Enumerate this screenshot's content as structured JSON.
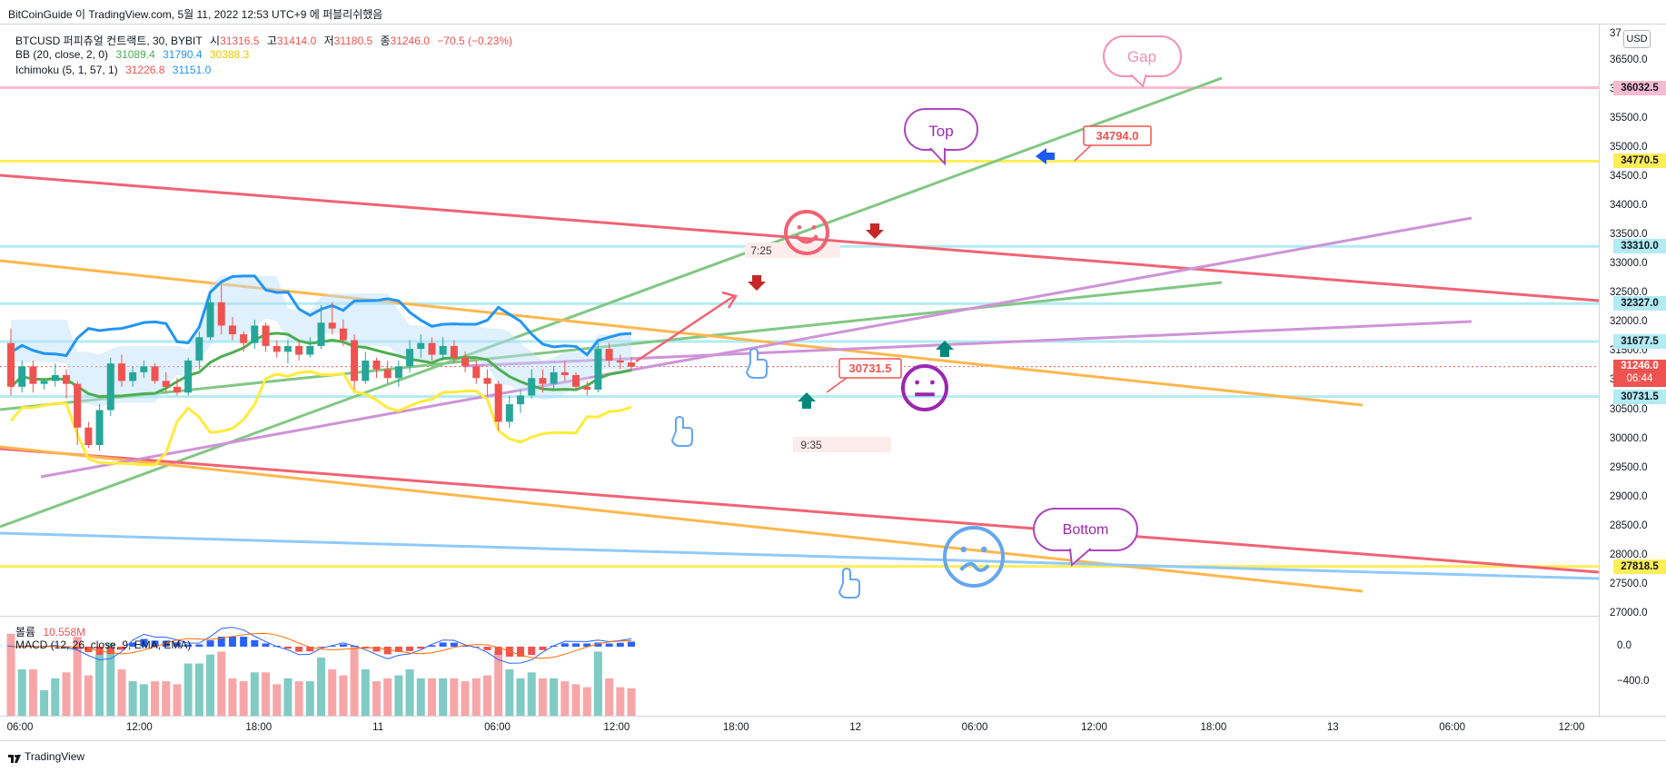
{
  "header": {
    "attribution": "BitCoinGuide 이 TradingView.com, 5월 11, 2022 12:53 UTC+9 에 퍼블리쉬했음"
  },
  "legend": {
    "symbol": "BTCUSD 퍼피츄얼 컨트랙트, 30, BYBIT",
    "open_label": "시",
    "open": "31316.5",
    "high_label": "고",
    "high": "31414.0",
    "low_label": "저",
    "low": "31180.5",
    "close_label": "종",
    "close": "31246.0",
    "change": "−70.5 (−0.23%)",
    "bb_label": "BB (20, close, 2, 0)",
    "bb_basis": "31089.4",
    "bb_upper": "31790.4",
    "bb_lower": "30388.3",
    "ichimoku_label": "Ichimoku (5, 1, 57, 1)",
    "ichi_a": "31226.8",
    "ichi_b": "31151.0",
    "volume_label": "볼륨",
    "volume_value": "10.558M",
    "macd_label": "MACD (12, 26, close, 9, EMA, EMA)"
  },
  "colors": {
    "up": "#26a69a",
    "down": "#ef5350",
    "bb_basis": "#4caf50",
    "bb_upper": "#2196f3",
    "bb_lower": "#ffeb3b",
    "green_line": "#81c784",
    "red_line": "#f06373",
    "orange_line": "#ffb74d",
    "violet_line": "#ce93d8",
    "cyan_line": "#b2ebf2",
    "yellow_line": "#ffee58",
    "pink_line": "#f8bbd0",
    "blue_line": "#90caf9"
  },
  "price_axis": {
    "currency": "USD",
    "ticks": [
      "36500.0",
      "36000.0",
      "35500.0",
      "35000.0",
      "34500.0",
      "34000.0",
      "33500.0",
      "33000.0",
      "32500.0",
      "32000.0",
      "31500.0",
      "31000.0",
      "30500.0",
      "30000.0",
      "29500.0",
      "29000.0",
      "28500.0",
      "28000.0",
      "27500.0",
      "27000.0"
    ],
    "top_partial": "37",
    "tags": [
      {
        "value": "36032.5",
        "bg": "#f8bbd0"
      },
      {
        "value": "34770.5",
        "bg": "#ffee58"
      },
      {
        "value": "33310.0",
        "bg": "#b2ebf2"
      },
      {
        "value": "32327.0",
        "bg": "#b2ebf2"
      },
      {
        "value": "31677.5",
        "bg": "#b2ebf2"
      },
      {
        "value": "30731.5",
        "bg": "#b2ebf2"
      },
      {
        "value": "27818.5",
        "bg": "#ffee58"
      }
    ],
    "last_price": "31246.0",
    "countdown": "06:44"
  },
  "macd_axis": {
    "ticks": [
      "0.0",
      "−400.0"
    ]
  },
  "time_axis": {
    "labels": [
      "06:00",
      "12:00",
      "18:00",
      "11",
      "06:00",
      "12:00",
      "18:00",
      "12",
      "06:00",
      "12:00",
      "18:00",
      "13",
      "06:00",
      "12:00"
    ]
  },
  "annotations": {
    "gap": "Gap",
    "top": "Top",
    "bottom": "Bottom",
    "callout_top": "34794.0",
    "callout_mid": "30731.5",
    "time_a": "7:25",
    "time_b": "9:35"
  },
  "footer": {
    "brand": "TradingView"
  },
  "chart_data": {
    "type": "candlestick",
    "symbol": "BTCUSD",
    "timeframe": "30",
    "exchange": "BYBIT",
    "ylim": [
      26800,
      37000
    ],
    "candles": [
      [
        31650,
        31900,
        30750,
        30900
      ],
      [
        30900,
        31350,
        30800,
        31250
      ],
      [
        31250,
        31350,
        30800,
        30950
      ],
      [
        30950,
        31050,
        30850,
        31000
      ],
      [
        31000,
        31300,
        30900,
        31100
      ],
      [
        31100,
        31200,
        30700,
        30950
      ],
      [
        30950,
        31000,
        29900,
        30200
      ],
      [
        30200,
        30300,
        29850,
        29900
      ],
      [
        29900,
        30600,
        29800,
        30500
      ],
      [
        30500,
        31400,
        30400,
        31300
      ],
      [
        31300,
        31450,
        30900,
        31000
      ],
      [
        31000,
        31250,
        30900,
        31150
      ],
      [
        31150,
        31350,
        31050,
        31250
      ],
      [
        31250,
        31300,
        30950,
        31000
      ],
      [
        31000,
        31150,
        30800,
        30900
      ],
      [
        30900,
        31050,
        30750,
        30800
      ],
      [
        30800,
        31400,
        30750,
        31350
      ],
      [
        31350,
        31850,
        31200,
        31750
      ],
      [
        31750,
        32500,
        31700,
        32350
      ],
      [
        32350,
        32650,
        31800,
        31950
      ],
      [
        31950,
        32100,
        31700,
        31800
      ],
      [
        31800,
        31850,
        31500,
        31650
      ],
      [
        31650,
        32050,
        31550,
        31950
      ],
      [
        31950,
        32000,
        31500,
        31600
      ],
      [
        31600,
        31700,
        31400,
        31500
      ],
      [
        31500,
        31700,
        31300,
        31600
      ],
      [
        31600,
        31700,
        31350,
        31450
      ],
      [
        31450,
        31750,
        31400,
        31600
      ],
      [
        31600,
        32300,
        31550,
        32000
      ],
      [
        32000,
        32350,
        31800,
        31900
      ],
      [
        31900,
        32050,
        31600,
        31700
      ],
      [
        31700,
        31800,
        30850,
        31000
      ],
      [
        31000,
        31500,
        30950,
        31350
      ],
      [
        31350,
        31400,
        31050,
        31200
      ],
      [
        31200,
        31350,
        30950,
        31050
      ],
      [
        31050,
        31350,
        30900,
        31250
      ],
      [
        31250,
        31700,
        31150,
        31550
      ],
      [
        31550,
        31800,
        31400,
        31650
      ],
      [
        31650,
        31750,
        31350,
        31450
      ],
      [
        31450,
        31750,
        31350,
        31600
      ],
      [
        31600,
        31700,
        31300,
        31400
      ],
      [
        31400,
        31500,
        31150,
        31250
      ],
      [
        31250,
        31350,
        30950,
        31050
      ],
      [
        31050,
        31200,
        30750,
        30950
      ],
      [
        30950,
        31000,
        30150,
        30300
      ],
      [
        30300,
        30750,
        30200,
        30600
      ],
      [
        30600,
        30850,
        30450,
        30750
      ],
      [
        30750,
        31200,
        30700,
        31050
      ],
      [
        31050,
        31200,
        30800,
        30950
      ],
      [
        30950,
        31250,
        30850,
        31150
      ],
      [
        31150,
        31350,
        31000,
        31100
      ],
      [
        31100,
        31150,
        30850,
        30900
      ],
      [
        30900,
        31000,
        30750,
        30850
      ],
      [
        30850,
        31650,
        30800,
        31550
      ],
      [
        31550,
        31650,
        31250,
        31350
      ],
      [
        31350,
        31450,
        31200,
        31316.5
      ],
      [
        31316.5,
        31414,
        31180.5,
        31246
      ]
    ],
    "bb_basis_last": 31089.4,
    "bb_upper_last": 31790.4,
    "bb_lower_last": 30388.3,
    "ichimoku_lead_a": 31226.8,
    "ichimoku_lead_b": 31151.0,
    "horizontal_levels": [
      36032.5,
      34770.5,
      33310.0,
      32327.0,
      31677.5,
      30731.5,
      27818.5
    ],
    "macd_ylim": [
      -600,
      200
    ]
  }
}
